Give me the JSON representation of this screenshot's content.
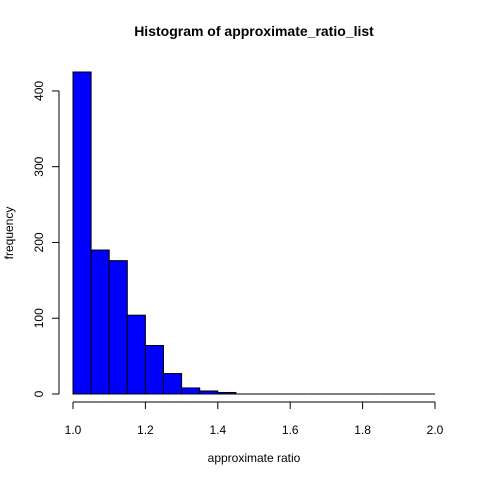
{
  "chart_data": {
    "type": "bar",
    "title": "Histogram of approximate_ratio_list",
    "xlabel": "approximate ratio",
    "ylabel": "frequency",
    "xlim": [
      1.0,
      2.0
    ],
    "ylim": [
      0,
      425
    ],
    "bin_edges": [
      1.0,
      1.05,
      1.1,
      1.15,
      1.2,
      1.25,
      1.3,
      1.35,
      1.4,
      1.45,
      1.5,
      1.55,
      1.6,
      1.65,
      1.7,
      1.75,
      1.8,
      1.85,
      1.9,
      1.95,
      2.0
    ],
    "values": [
      425,
      190,
      176,
      104,
      64,
      27,
      8,
      4,
      2,
      0,
      0,
      0,
      0,
      0,
      0,
      0,
      0,
      0,
      0,
      0
    ],
    "x_ticks": [
      "1.0",
      "1.2",
      "1.4",
      "1.6",
      "1.8",
      "2.0"
    ],
    "y_ticks": [
      "0",
      "100",
      "200",
      "300",
      "400"
    ],
    "bar_color": "#0000ff",
    "grid": false,
    "legend": "none"
  }
}
